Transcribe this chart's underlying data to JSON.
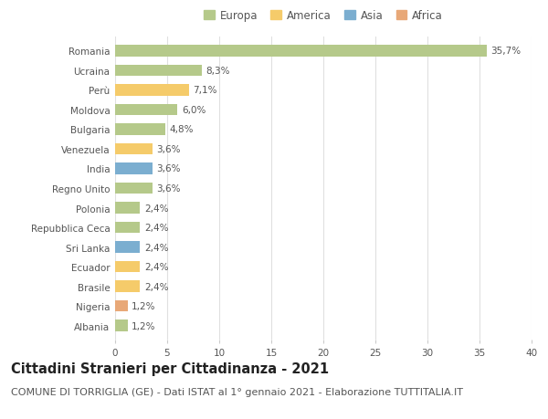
{
  "countries": [
    "Romania",
    "Ucraina",
    "Perù",
    "Moldova",
    "Bulgaria",
    "Venezuela",
    "India",
    "Regno Unito",
    "Polonia",
    "Repubblica Ceca",
    "Sri Lanka",
    "Ecuador",
    "Brasile",
    "Nigeria",
    "Albania"
  ],
  "values": [
    35.7,
    8.3,
    7.1,
    6.0,
    4.8,
    3.6,
    3.6,
    3.6,
    2.4,
    2.4,
    2.4,
    2.4,
    2.4,
    1.2,
    1.2
  ],
  "labels": [
    "35,7%",
    "8,3%",
    "7,1%",
    "6,0%",
    "4,8%",
    "3,6%",
    "3,6%",
    "3,6%",
    "2,4%",
    "2,4%",
    "2,4%",
    "2,4%",
    "2,4%",
    "1,2%",
    "1,2%"
  ],
  "continents": [
    "Europa",
    "Europa",
    "America",
    "Europa",
    "Europa",
    "America",
    "Asia",
    "Europa",
    "Europa",
    "Europa",
    "Asia",
    "America",
    "America",
    "Africa",
    "Europa"
  ],
  "continent_colors": {
    "Europa": "#b5c98a",
    "America": "#f5cb6a",
    "Asia": "#7baed0",
    "Africa": "#e8a878"
  },
  "legend_order": [
    "Europa",
    "America",
    "Asia",
    "Africa"
  ],
  "bg_color": "#ffffff",
  "grid_color": "#e0e0e0",
  "xlim": [
    0,
    40
  ],
  "xticks": [
    0,
    5,
    10,
    15,
    20,
    25,
    30,
    35,
    40
  ],
  "title": "Cittadini Stranieri per Cittadinanza - 2021",
  "subtitle": "COMUNE DI TORRIGLIA (GE) - Dati ISTAT al 1° gennaio 2021 - Elaborazione TUTTITALIA.IT",
  "title_fontsize": 10.5,
  "subtitle_fontsize": 8.0,
  "label_fontsize": 7.5,
  "tick_fontsize": 7.5,
  "legend_fontsize": 8.5,
  "bar_height": 0.6
}
